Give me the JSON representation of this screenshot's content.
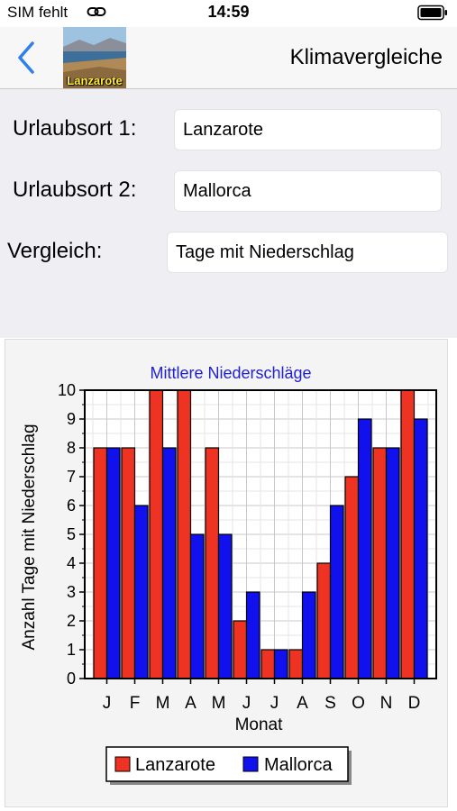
{
  "status_bar": {
    "carrier": "SIM fehlt",
    "time": "14:59",
    "link_icon": "link-icon",
    "battery_icon": "battery-icon"
  },
  "nav": {
    "back_icon": "chevron-left-icon",
    "thumbnail_label": "Lanzarote",
    "title": "Klimavergleiche"
  },
  "form": {
    "row1_label": "Urlaubsort 1:",
    "row1_value": "Lanzarote",
    "row2_label": "Urlaubsort 2:",
    "row2_value": "Mallorca",
    "row3_label": "Vergleich:",
    "row3_value": "Tage mit Niederschlag"
  },
  "colors": {
    "series1": "#ee3322",
    "series2": "#1111ee",
    "title": "#2222cc"
  },
  "chart_data": {
    "type": "bar",
    "title": "Mittlere Niederschläge",
    "xlabel": "Monat",
    "ylabel": "Anzahl Tage mit Niederschlag",
    "ylim": [
      0,
      10
    ],
    "yticks": [
      0,
      1,
      2,
      3,
      4,
      5,
      6,
      7,
      8,
      9,
      10
    ],
    "grid": true,
    "legend": "bottom-center",
    "categories": [
      "J",
      "F",
      "M",
      "A",
      "M",
      "J",
      "J",
      "A",
      "S",
      "O",
      "N",
      "D"
    ],
    "series": [
      {
        "name": "Lanzarote",
        "values": [
          8,
          8,
          10,
          10,
          8,
          2,
          1,
          1,
          4,
          7,
          8,
          10
        ]
      },
      {
        "name": "Mallorca",
        "values": [
          8,
          6,
          8,
          5,
          5,
          3,
          1,
          3,
          6,
          9,
          8,
          9
        ]
      }
    ]
  }
}
